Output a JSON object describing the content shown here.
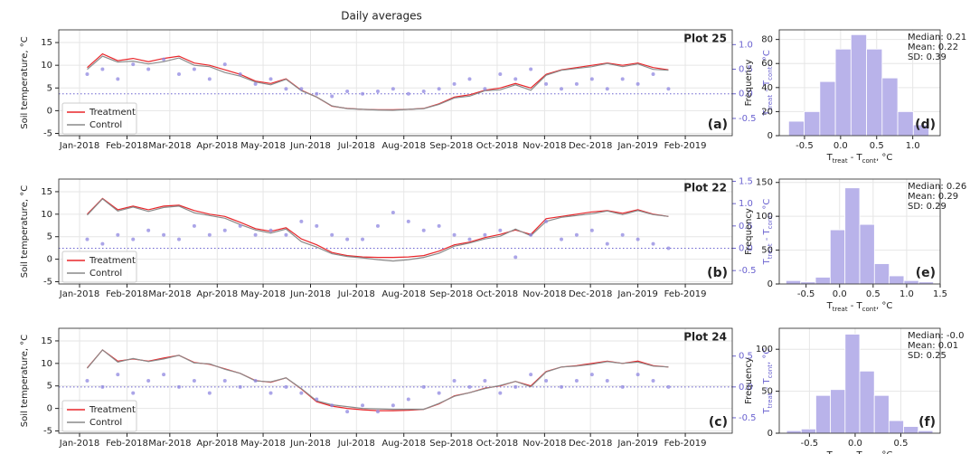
{
  "title": "Daily averages",
  "chart_data": [
    {
      "type": "line",
      "label": "Plot 25",
      "panel": "(a)",
      "ylabel": "Soil temperature, °C",
      "y2label": [
        "T",
        "treat",
        " - T",
        "cont",
        ", °C"
      ],
      "x": [
        5,
        15,
        25,
        35,
        45,
        55,
        65,
        75,
        85,
        95,
        105,
        115,
        125,
        135,
        145,
        155,
        165,
        175,
        185,
        195,
        205,
        215,
        225,
        235,
        245,
        255,
        265,
        275,
        285,
        295,
        305,
        315,
        325,
        335,
        345,
        355,
        365,
        375,
        385
      ],
      "xlim": [
        -13.6,
        426.7
      ],
      "xticks": [
        {
          "value": 0,
          "label": "Jan-2018"
        },
        {
          "value": 31,
          "label": "Feb-2018"
        },
        {
          "value": 59,
          "label": "Mar-2018"
        },
        {
          "value": 90,
          "label": "Apr-2018"
        },
        {
          "value": 120,
          "label": "May-2018"
        },
        {
          "value": 151,
          "label": "Jun-2018"
        },
        {
          "value": 181,
          "label": "Jul-2018"
        },
        {
          "value": 212,
          "label": "Aug-2018"
        },
        {
          "value": 243,
          "label": "Sep-2018"
        },
        {
          "value": 273,
          "label": "Oct-2018"
        },
        {
          "value": 304,
          "label": "Nov-2018"
        },
        {
          "value": 334,
          "label": "Dec-2018"
        },
        {
          "value": 365,
          "label": "Jan-2019"
        },
        {
          "value": 396,
          "label": "Feb-2019"
        }
      ],
      "ylim": [
        -5.5,
        17.8
      ],
      "yticks": [
        -5,
        0,
        5,
        10,
        15
      ],
      "y2lim": [
        -0.85,
        1.3
      ],
      "y2ticks": [
        -0.5,
        {
          "value": 0,
          "label": "0.0"
        },
        0.5,
        {
          "value": 1,
          "label": "1.0"
        }
      ],
      "grid": true,
      "legend": "lower left",
      "reference_line": {
        "axis": "y2",
        "value": 0
      },
      "series": [
        {
          "name": "Treatment",
          "color": "#e8262a",
          "mark": "line",
          "values": [
            9.5,
            12.5,
            11,
            11.5,
            10.8,
            11.5,
            12,
            10.5,
            10,
            9,
            8,
            6.5,
            6,
            7,
            4.5,
            3,
            1,
            0.5,
            0.3,
            0.2,
            0.2,
            0.3,
            0.5,
            1.5,
            3,
            3.5,
            4.5,
            5,
            6,
            5,
            8,
            9,
            9.5,
            10,
            10.5,
            10,
            10.5,
            9.5,
            9
          ]
        },
        {
          "name": "Control",
          "color": "#8a8a8a",
          "mark": "line",
          "values": [
            9.1,
            12.0,
            10.7,
            10.9,
            10.3,
            10.8,
            11.6,
            10.0,
            9.7,
            8.4,
            7.6,
            6.3,
            5.7,
            6.9,
            4.4,
            3.0,
            1.05,
            0.45,
            0.3,
            0.15,
            0.1,
            0.3,
            0.45,
            1.4,
            2.8,
            3.2,
            4.4,
            4.6,
            5.7,
            4.5,
            7.8,
            8.9,
            9.3,
            9.7,
            10.4,
            9.7,
            10.3,
            9.1,
            8.9
          ]
        },
        {
          "color": "#8f87e0",
          "mark": "scatter",
          "axis": "y2",
          "values": [
            0.4,
            0.5,
            0.3,
            0.6,
            0.5,
            0.7,
            0.4,
            0.5,
            0.3,
            0.6,
            0.4,
            0.2,
            0.3,
            0.1,
            0.1,
            0.0,
            -0.05,
            0.05,
            0.0,
            0.05,
            0.1,
            0.0,
            0.05,
            0.1,
            0.2,
            0.3,
            0.1,
            0.4,
            0.3,
            0.5,
            0.2,
            0.1,
            0.2,
            0.3,
            0.1,
            0.3,
            0.2,
            0.4,
            0.1
          ]
        }
      ]
    },
    {
      "type": "line",
      "label": "Plot 22",
      "panel": "(b)",
      "ylabel": "Soil temperature, °C",
      "y2label": [
        "T",
        "treat",
        " - T",
        "cont",
        ", °C"
      ],
      "x": [
        5,
        15,
        25,
        35,
        45,
        55,
        65,
        75,
        85,
        95,
        105,
        115,
        125,
        135,
        145,
        155,
        165,
        175,
        185,
        195,
        205,
        215,
        225,
        235,
        245,
        255,
        265,
        275,
        285,
        295,
        305,
        315,
        325,
        335,
        345,
        355,
        365,
        375,
        385
      ],
      "xlim": [
        -13.6,
        426.7
      ],
      "xticks": [
        {
          "value": 0,
          "label": "Jan-2018"
        },
        {
          "value": 31,
          "label": "Feb-2018"
        },
        {
          "value": 59,
          "label": "Mar-2018"
        },
        {
          "value": 90,
          "label": "Apr-2018"
        },
        {
          "value": 120,
          "label": "May-2018"
        },
        {
          "value": 151,
          "label": "Jun-2018"
        },
        {
          "value": 181,
          "label": "Jul-2018"
        },
        {
          "value": 212,
          "label": "Aug-2018"
        },
        {
          "value": 243,
          "label": "Sep-2018"
        },
        {
          "value": 273,
          "label": "Oct-2018"
        },
        {
          "value": 304,
          "label": "Nov-2018"
        },
        {
          "value": 334,
          "label": "Dec-2018"
        },
        {
          "value": 365,
          "label": "Jan-2019"
        },
        {
          "value": 396,
          "label": "Feb-2019"
        }
      ],
      "ylim": [
        -5.5,
        17.8
      ],
      "yticks": [
        -5,
        0,
        5,
        10,
        15
      ],
      "y2lim": [
        -0.8,
        1.55
      ],
      "y2ticks": [
        -0.5,
        {
          "value": 0,
          "label": "0.0"
        },
        0.5,
        {
          "value": 1,
          "label": "1.0"
        },
        1.5
      ],
      "grid": true,
      "legend": "lower left",
      "reference_line": {
        "axis": "y2",
        "value": 0
      },
      "series": [
        {
          "name": "Treatment",
          "color": "#e8262a",
          "mark": "line",
          "values": [
            10,
            13.5,
            11,
            11.8,
            11,
            11.8,
            12,
            10.8,
            10,
            9.5,
            8.2,
            6.8,
            6.2,
            7,
            4.5,
            3.2,
            1.5,
            0.8,
            0.5,
            0.4,
            0.4,
            0.5,
            0.8,
            1.8,
            3.2,
            3.8,
            4.8,
            5.5,
            6.5,
            5.5,
            9,
            9.5,
            10,
            10.5,
            10.8,
            10.2,
            11,
            10,
            9.5
          ]
        },
        {
          "name": "Control",
          "color": "#8a8a8a",
          "mark": "line",
          "values": [
            9.8,
            13.4,
            10.7,
            11.6,
            10.6,
            11.5,
            11.8,
            10.3,
            9.7,
            9.1,
            7.7,
            6.5,
            5.8,
            6.7,
            3.9,
            2.7,
            1.2,
            0.6,
            0.3,
            -0.1,
            -0.4,
            -0.1,
            0.4,
            1.3,
            2.9,
            3.6,
            4.5,
            5.1,
            6.7,
            5.2,
            8.4,
            9.3,
            9.7,
            10.1,
            10.7,
            9.9,
            10.8,
            9.9,
            9.5
          ]
        },
        {
          "color": "#8f87e0",
          "mark": "scatter",
          "axis": "y2",
          "values": [
            0.2,
            0.1,
            0.3,
            0.2,
            0.4,
            0.3,
            0.2,
            0.5,
            0.3,
            0.4,
            0.5,
            0.3,
            0.4,
            0.3,
            0.6,
            0.5,
            0.3,
            0.2,
            0.2,
            0.5,
            0.8,
            0.6,
            0.4,
            0.5,
            0.3,
            0.2,
            0.3,
            0.4,
            -0.2,
            0.3,
            0.6,
            0.2,
            0.3,
            0.4,
            0.1,
            0.3,
            0.2,
            0.1,
            0.0
          ]
        }
      ]
    },
    {
      "type": "line",
      "label": "Plot 24",
      "panel": "(c)",
      "ylabel": "Soil temperature, °C",
      "y2label": [
        "T",
        "treat",
        " - T",
        "cont",
        ", °C"
      ],
      "x": [
        5,
        15,
        25,
        35,
        45,
        55,
        65,
        75,
        85,
        95,
        105,
        115,
        125,
        135,
        145,
        155,
        165,
        175,
        185,
        195,
        205,
        215,
        225,
        235,
        245,
        255,
        265,
        275,
        285,
        295,
        305,
        315,
        325,
        335,
        345,
        355,
        365,
        375,
        385
      ],
      "xlim": [
        -13.6,
        426.7
      ],
      "xticks": [
        {
          "value": 0,
          "label": "Jan-2018"
        },
        {
          "value": 31,
          "label": "Feb-2018"
        },
        {
          "value": 59,
          "label": "Mar-2018"
        },
        {
          "value": 90,
          "label": "Apr-2018"
        },
        {
          "value": 120,
          "label": "May-2018"
        },
        {
          "value": 151,
          "label": "Jun-2018"
        },
        {
          "value": 181,
          "label": "Jul-2018"
        },
        {
          "value": 212,
          "label": "Aug-2018"
        },
        {
          "value": 243,
          "label": "Sep-2018"
        },
        {
          "value": 273,
          "label": "Oct-2018"
        },
        {
          "value": 304,
          "label": "Nov-2018"
        },
        {
          "value": 334,
          "label": "Dec-2018"
        },
        {
          "value": 365,
          "label": "Jan-2019"
        },
        {
          "value": 396,
          "label": "Feb-2019"
        }
      ],
      "ylim": [
        -5.5,
        17.8
      ],
      "yticks": [
        -5,
        0,
        5,
        10,
        15
      ],
      "y2lim": [
        -0.75,
        0.95
      ],
      "y2ticks": [
        -0.5,
        {
          "value": 0,
          "label": "0.0"
        },
        0.5
      ],
      "grid": true,
      "legend": "lower left",
      "reference_line": {
        "axis": "y2",
        "value": 0
      },
      "series": [
        {
          "name": "Treatment",
          "color": "#e8262a",
          "mark": "line",
          "values": [
            9,
            13,
            10.5,
            11,
            10.5,
            11.2,
            11.8,
            10.2,
            9.8,
            8.8,
            7.8,
            6.2,
            5.8,
            6.8,
            4.3,
            1.5,
            0.5,
            0,
            -0.3,
            -0.5,
            -0.5,
            -0.4,
            -0.2,
            1,
            2.8,
            3.5,
            4.5,
            5,
            6,
            5,
            8.2,
            9.2,
            9.5,
            10,
            10.5,
            10,
            10.5,
            9.5,
            9.2
          ]
        },
        {
          "name": "Control",
          "color": "#8a8a8a",
          "mark": "line",
          "values": [
            8.9,
            13,
            10.3,
            11.1,
            10.4,
            11.0,
            11.8,
            10.1,
            9.9,
            8.7,
            7.8,
            6.1,
            5.9,
            6.8,
            4.4,
            1.7,
            0.8,
            0.4,
            0,
            -0.1,
            -0.2,
            -0.2,
            -0.2,
            1.1,
            2.7,
            3.5,
            4.4,
            5.1,
            6,
            4.8,
            8.1,
            9.2,
            9.4,
            9.8,
            10.4,
            10,
            10.3,
            9.4,
            9.2
          ]
        },
        {
          "color": "#8f87e0",
          "mark": "scatter",
          "axis": "y2",
          "values": [
            0.1,
            0.0,
            0.2,
            -0.1,
            0.1,
            0.2,
            0.0,
            0.1,
            -0.1,
            0.1,
            0.0,
            0.1,
            -0.1,
            0.0,
            -0.1,
            -0.2,
            -0.3,
            -0.4,
            -0.3,
            -0.4,
            -0.3,
            -0.2,
            0.0,
            -0.1,
            0.1,
            0.0,
            0.1,
            -0.1,
            0.0,
            0.2,
            0.1,
            0.0,
            0.1,
            0.2,
            0.1,
            0.0,
            0.2,
            0.1,
            0.0
          ]
        }
      ]
    },
    {
      "type": "histogram",
      "panel": "(d)",
      "ylabel": "Frequency",
      "xlabel": [
        "T",
        "treat",
        " - T",
        "cont",
        ", °C"
      ],
      "color": "#b9b3ea",
      "stats": [
        "Median: 0.21",
        "Mean: 0.22",
        "SD: 0.39"
      ],
      "bins": [
        -0.72,
        -0.504,
        -0.288,
        -0.072,
        0.144,
        0.36,
        0.576,
        0.792,
        1.008,
        1.224
      ],
      "counts": [
        12,
        20,
        45,
        72,
        84,
        72,
        48,
        20,
        9
      ],
      "xlim": [
        -0.85,
        1.38
      ],
      "xticks": [
        -0.5,
        {
          "value": 0,
          "label": "0.0"
        },
        0.5,
        {
          "value": 1,
          "label": "1.0"
        }
      ],
      "ylim": [
        0,
        88
      ],
      "yticks": [
        0,
        20,
        40,
        60,
        80
      ],
      "grid": true
    },
    {
      "type": "histogram",
      "panel": "(e)",
      "ylabel": "Frequency",
      "xlabel": [
        "T",
        "treat",
        " - T",
        "cont",
        ", °C"
      ],
      "color": "#b9b3ea",
      "stats": [
        "Median: 0.26",
        "Mean: 0.29",
        "SD: 0.29"
      ],
      "bins": [
        -0.8,
        -0.58,
        -0.36,
        -0.14,
        0.08,
        0.3,
        0.52,
        0.74,
        0.96,
        1.18,
        1.4
      ],
      "counts": [
        5,
        3,
        10,
        80,
        142,
        88,
        30,
        12,
        5,
        3
      ],
      "xlim": [
        -0.9,
        1.5
      ],
      "xticks": [
        -0.5,
        {
          "value": 0,
          "label": "0.0"
        },
        0.5,
        {
          "value": 1,
          "label": "1.0"
        },
        1.5
      ],
      "ylim": [
        0,
        155
      ],
      "yticks": [
        0,
        50,
        100,
        150
      ],
      "grid": true
    },
    {
      "type": "histogram",
      "panel": "(f)",
      "ylabel": "Frequency",
      "xlabel": [
        "T",
        "treat",
        " - T",
        "cont",
        ", °C"
      ],
      "color": "#b9b3ea",
      "stats": [
        "Median: -0.0",
        "Mean: 0.01",
        "SD: 0.25"
      ],
      "bins": [
        -0.75,
        -0.59,
        -0.43,
        -0.27,
        -0.11,
        0.05,
        0.21,
        0.37,
        0.53,
        0.69,
        0.85
      ],
      "counts": [
        3,
        5,
        45,
        52,
        118,
        74,
        45,
        15,
        8,
        3
      ],
      "xlim": [
        -0.83,
        0.93
      ],
      "xticks": [
        -0.5,
        {
          "value": 0,
          "label": "0.0"
        },
        0.5
      ],
      "ylim": [
        0,
        125
      ],
      "yticks": [
        0,
        50,
        100
      ],
      "grid": true
    }
  ]
}
